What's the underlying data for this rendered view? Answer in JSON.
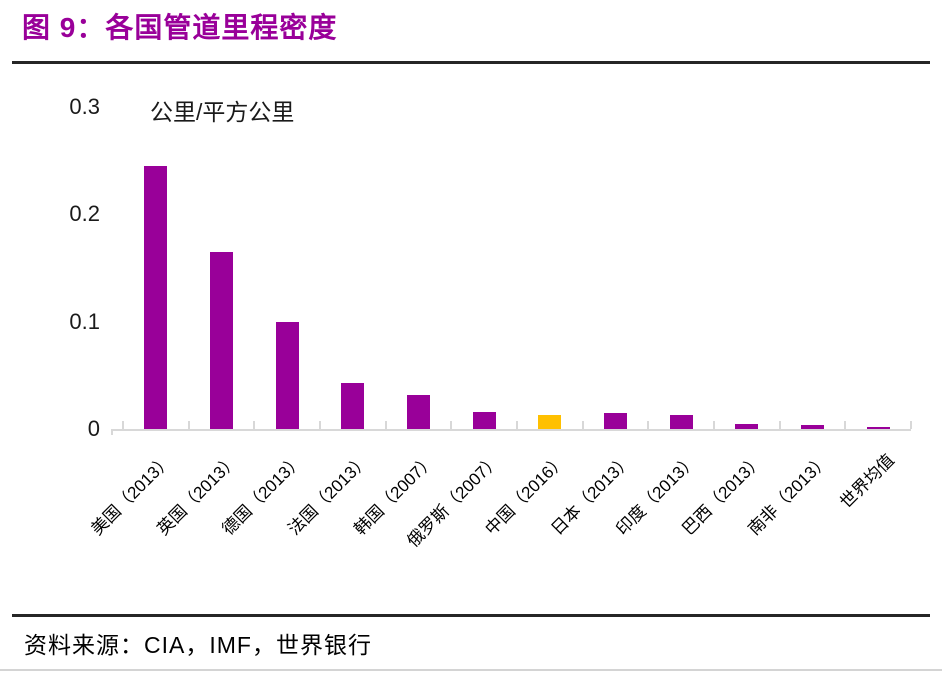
{
  "title": "图 9：各国管道里程密度",
  "footer": {
    "source": "资料来源：CIA，IMF，世界银行"
  },
  "colors": {
    "title": "#990099",
    "bar": "#990099",
    "highlight": "#FFC000",
    "axis": "#d8d8d8",
    "rule": "#262626"
  },
  "chart_data": {
    "type": "bar",
    "title": "图 9：各国管道里程密度",
    "xlabel": "",
    "ylabel": "公里/平方公里",
    "categories": [
      "美国（2013）",
      "英国（2013）",
      "德国（2013）",
      "法国（2013）",
      "韩国（2007）",
      "俄罗斯（2007）",
      "中国（2016）",
      "日本（2013）",
      "印度（2013）",
      "巴西（2013）",
      "南非（2013）",
      "世界均值"
    ],
    "values": [
      0.245,
      0.165,
      0.1,
      0.043,
      0.032,
      0.016,
      0.013,
      0.015,
      0.013,
      0.005,
      0.004,
      0.002
    ],
    "bar_color": "#990099",
    "highlight_index": 6,
    "highlight_color": "#FFC000",
    "ylim": [
      0,
      0.3
    ],
    "yticks": [
      0,
      0.1,
      0.2,
      0.3
    ],
    "ytick_labels": [
      "0",
      "0.1",
      "0.2",
      "0.3"
    ],
    "grid": false,
    "legend": null,
    "xtick_rotation_deg": 45
  }
}
